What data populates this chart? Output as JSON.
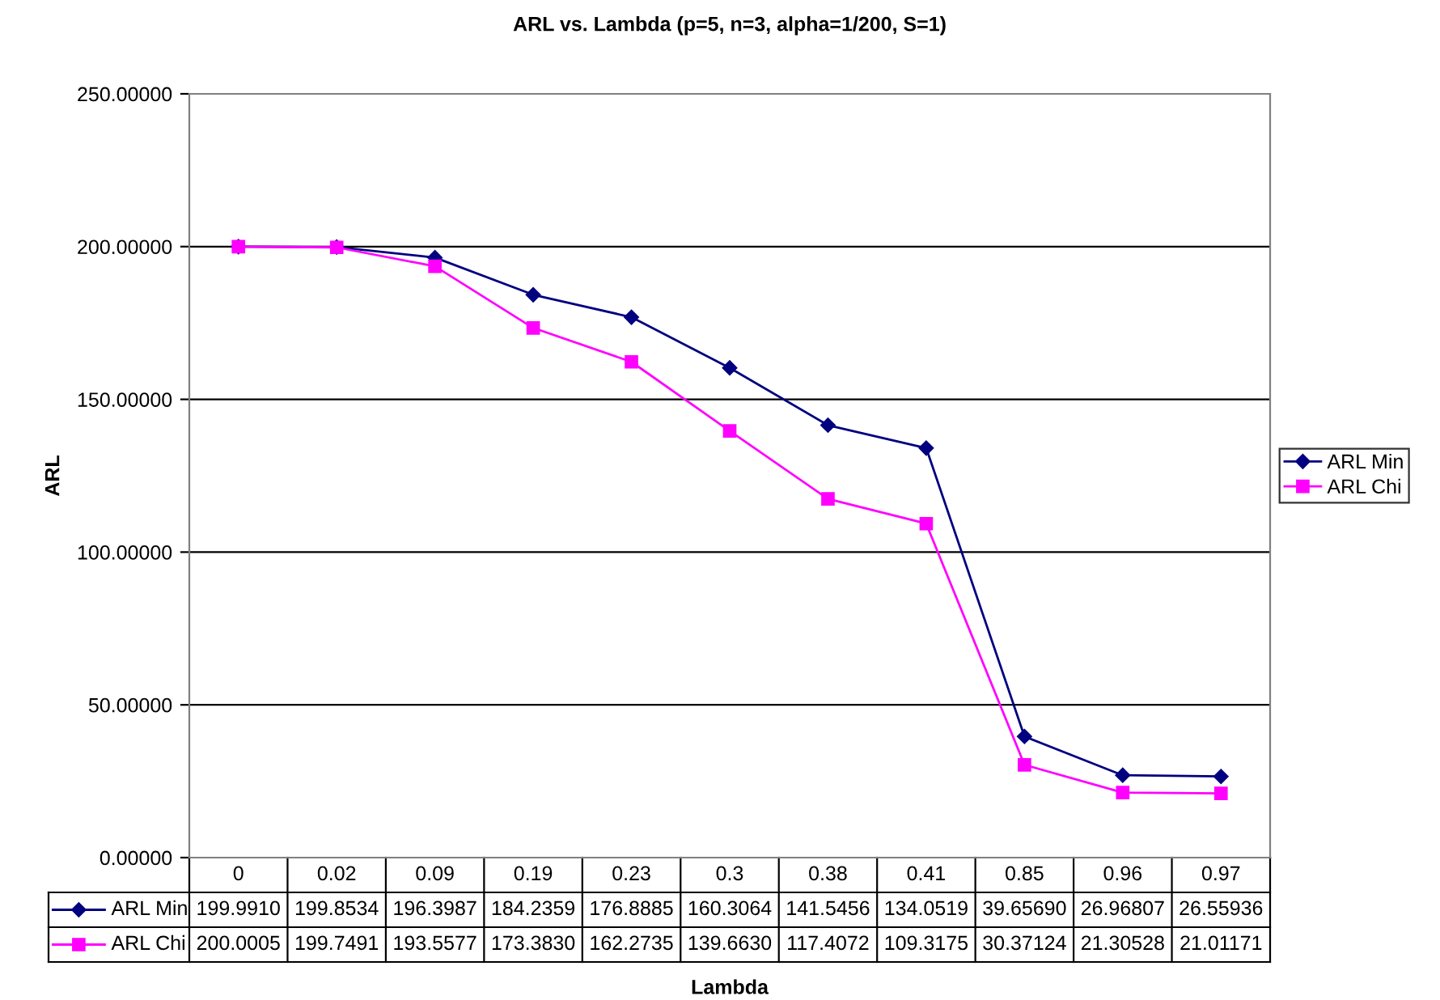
{
  "chart_data": {
    "type": "line",
    "title": "ARL vs. Lambda (p=5, n=3, alpha=1/200, S=1)",
    "xlabel": "Lambda",
    "ylabel": "ARL",
    "categories": [
      "0",
      "0.02",
      "0.09",
      "0.19",
      "0.23",
      "0.3",
      "0.38",
      "0.41",
      "0.85",
      "0.96",
      "0.97"
    ],
    "series": [
      {
        "name": "ARL Min",
        "color": "#000080",
        "marker": "diamond",
        "values": [
          199.991,
          199.8534,
          196.3987,
          184.2359,
          176.8885,
          160.3064,
          141.5456,
          134.0519,
          39.6569,
          26.96807,
          26.55936
        ],
        "value_labels": [
          "199.9910",
          "199.8534",
          "196.3987",
          "184.2359",
          "176.8885",
          "160.3064",
          "141.5456",
          "134.0519",
          "39.65690",
          "26.96807",
          "26.55936"
        ]
      },
      {
        "name": "ARL Chi",
        "color": "#ff00ff",
        "marker": "square",
        "values": [
          200.0005,
          199.7491,
          193.5577,
          173.383,
          162.2735,
          139.663,
          117.4072,
          109.3175,
          30.37124,
          21.30528,
          21.01171
        ],
        "value_labels": [
          "200.0005",
          "199.7491",
          "193.5577",
          "173.3830",
          "162.2735",
          "139.6630",
          "117.4072",
          "109.3175",
          "30.37124",
          "21.30528",
          "21.01171"
        ]
      }
    ],
    "ylim": [
      0,
      250
    ],
    "yticks": [
      {
        "value": 0,
        "label": "0.00000"
      },
      {
        "value": 50,
        "label": "50.00000"
      },
      {
        "value": 100,
        "label": "100.00000"
      },
      {
        "value": 150,
        "label": "150.00000"
      },
      {
        "value": 200,
        "label": "200.00000"
      },
      {
        "value": 250,
        "label": "250.00000"
      }
    ],
    "grid": "y",
    "legend": "right"
  }
}
